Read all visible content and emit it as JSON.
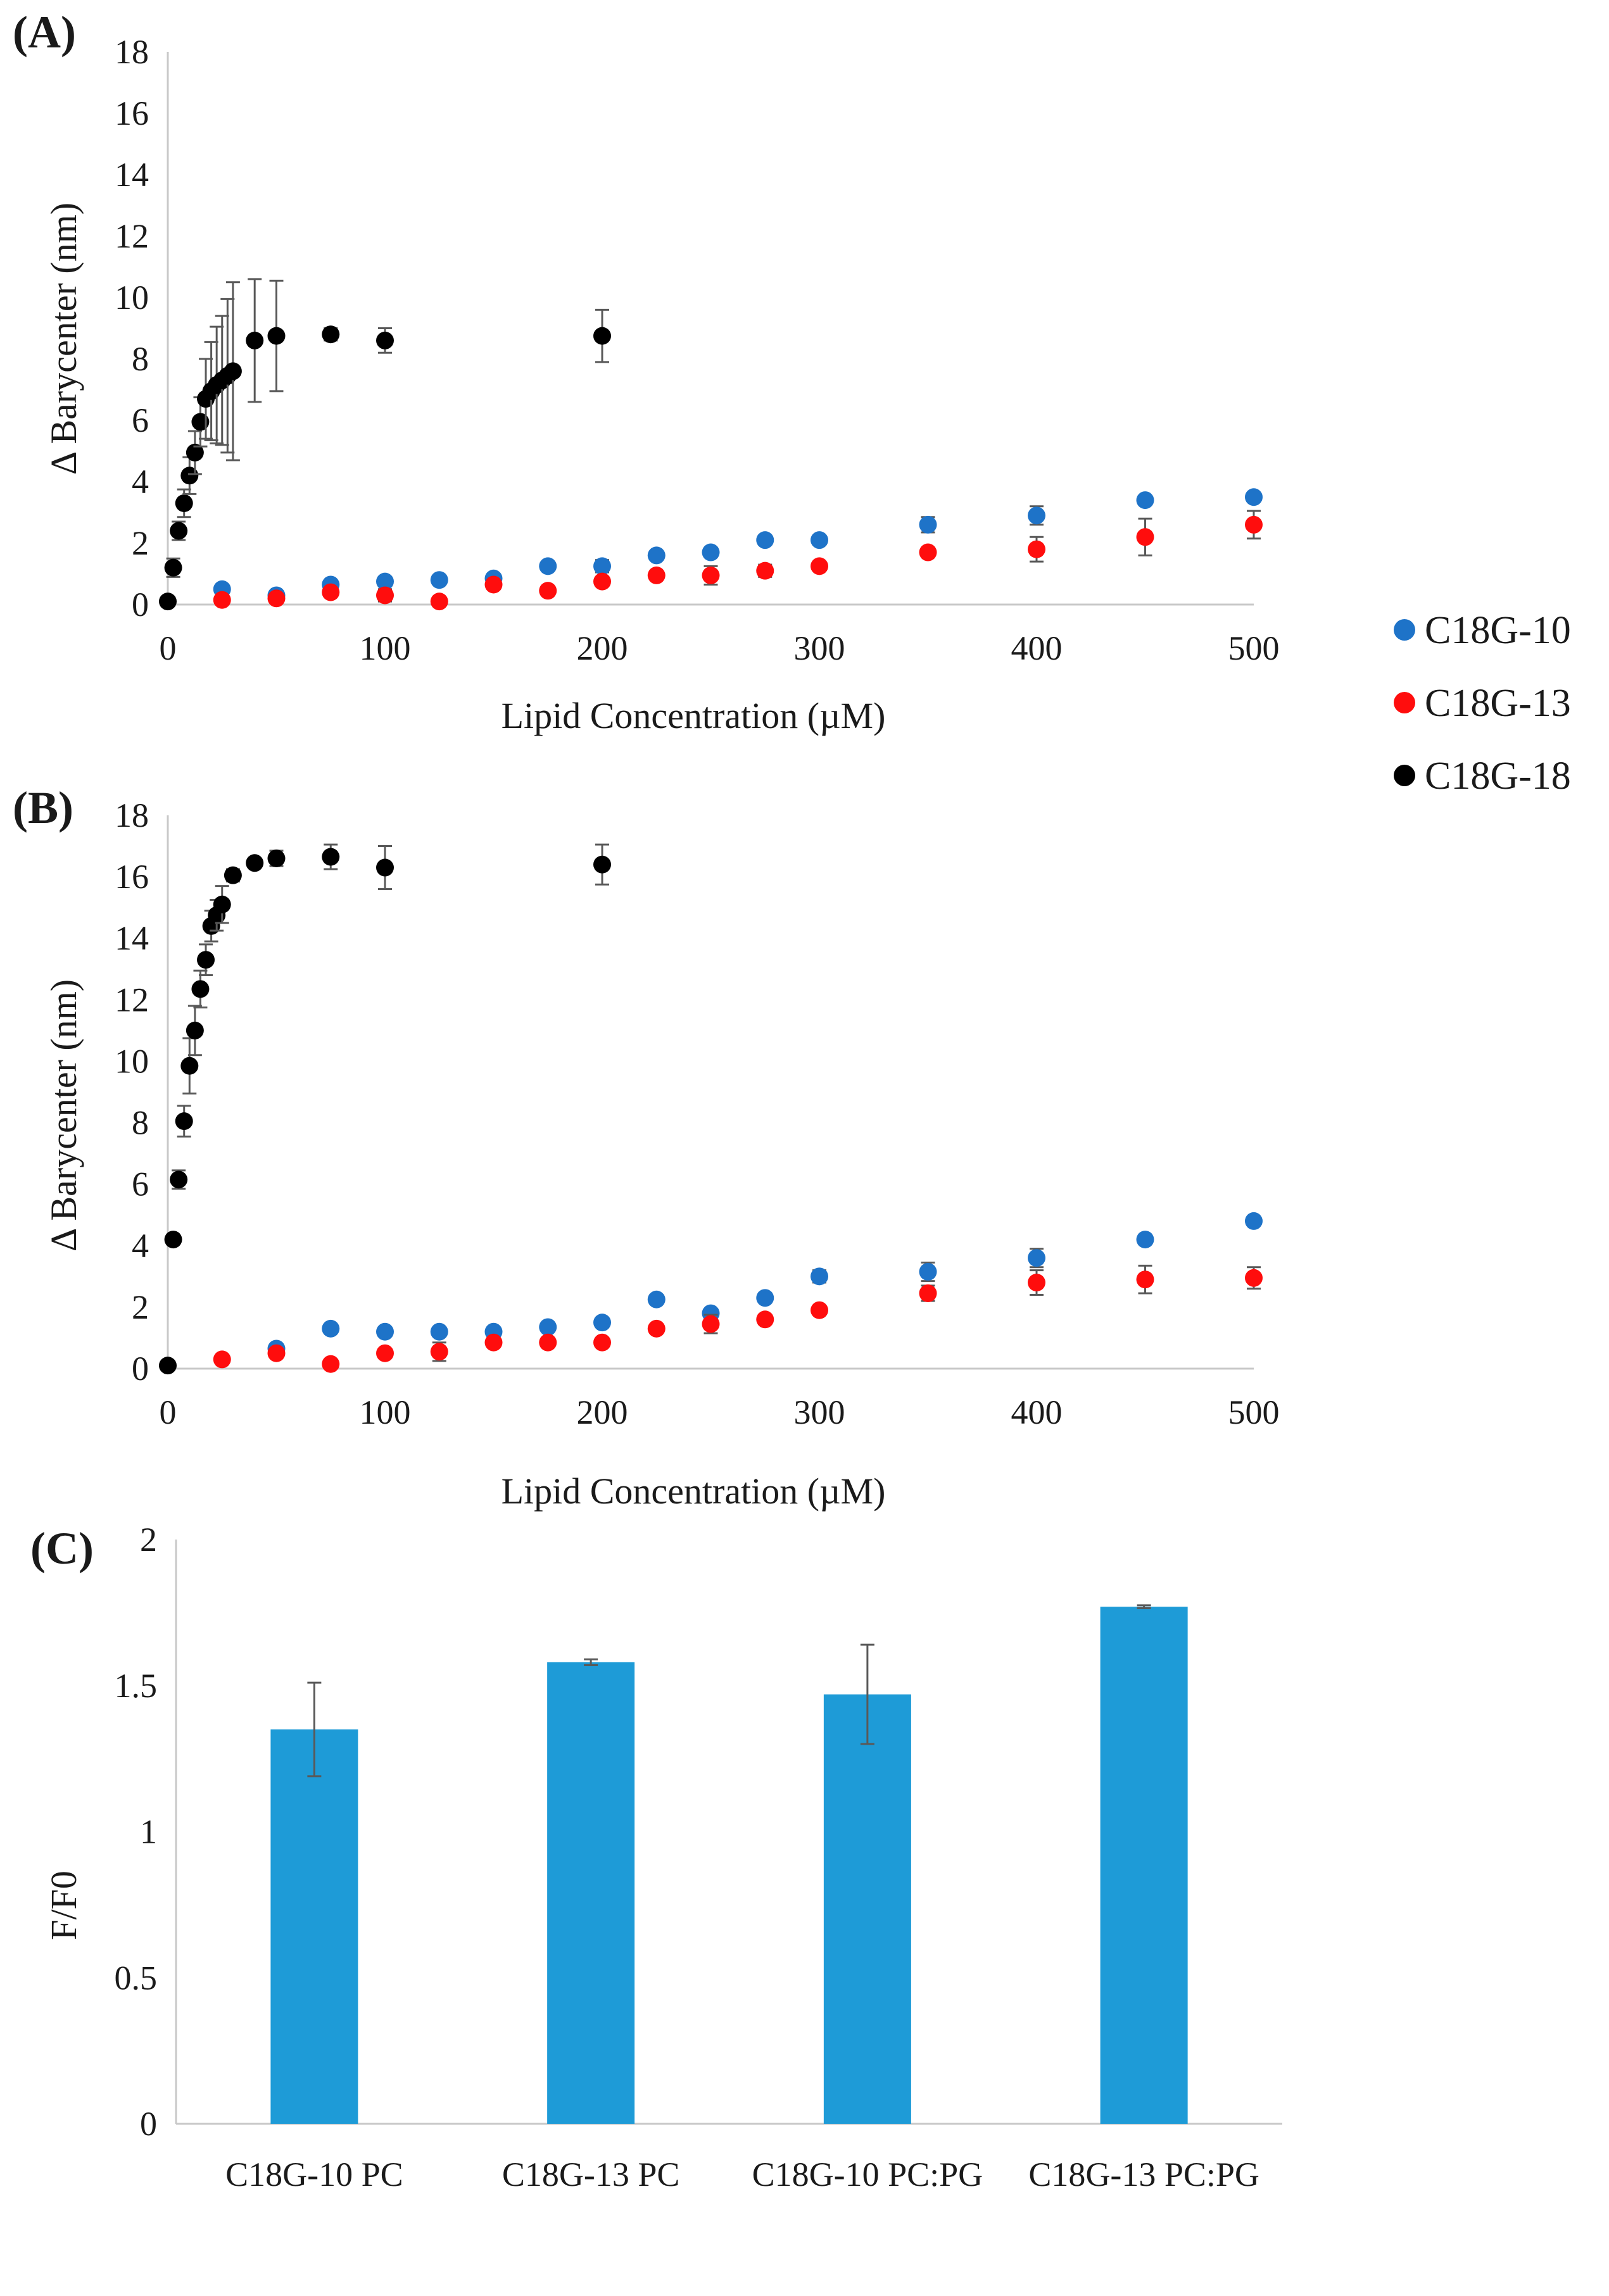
{
  "figure": {
    "panel_labels": [
      "(A)",
      "(B)",
      "(C)"
    ]
  },
  "legend": {
    "entries": [
      {
        "name": "C18G-10",
        "color": "#1e73c8"
      },
      {
        "name": "C18G-13",
        "color": "#ff0d0d"
      },
      {
        "name": "C18G-18",
        "color": "#000000"
      }
    ]
  },
  "chart_data": [
    {
      "panel": "(A)",
      "type": "scatter",
      "xlabel": "Lipid Concentration (µM)",
      "ylabel": "Δ Barycenter (nm)",
      "xlim": [
        0,
        500
      ],
      "ylim": [
        0,
        18
      ],
      "xticks": [
        0,
        100,
        200,
        300,
        400,
        500
      ],
      "yticks": [
        0,
        2,
        4,
        6,
        8,
        10,
        12,
        14,
        16,
        18
      ],
      "series": [
        {
          "name": "C18G-10",
          "color": "#1e73c8",
          "x": [
            25,
            50,
            75,
            100,
            125,
            150,
            175,
            200,
            225,
            250,
            275,
            300,
            350,
            400,
            450,
            500
          ],
          "y": [
            0.5,
            0.3,
            0.65,
            0.75,
            0.8,
            0.85,
            1.25,
            1.25,
            1.6,
            1.7,
            2.1,
            2.1,
            2.6,
            2.9,
            3.4,
            3.5
          ],
          "err": [
            0.05,
            0.05,
            0.05,
            0.1,
            0.05,
            0.05,
            0.1,
            0.2,
            0.1,
            0.15,
            0.15,
            0.15,
            0.25,
            0.3,
            0.1,
            0.1
          ]
        },
        {
          "name": "C18G-13",
          "color": "#ff0d0d",
          "x": [
            25,
            50,
            75,
            100,
            125,
            150,
            175,
            200,
            225,
            250,
            275,
            300,
            350,
            400,
            450,
            500
          ],
          "y": [
            0.15,
            0.2,
            0.4,
            0.3,
            0.1,
            0.65,
            0.45,
            0.75,
            0.95,
            0.95,
            1.1,
            1.25,
            1.7,
            1.8,
            2.2,
            2.6
          ],
          "err": [
            0.05,
            0.05,
            0.1,
            0.2,
            0.05,
            0.1,
            0.1,
            0.1,
            0.1,
            0.3,
            0.2,
            0.1,
            0.1,
            0.4,
            0.6,
            0.45
          ]
        },
        {
          "name": "C18G-18",
          "color": "#000000",
          "x": [
            0,
            2.5,
            5,
            7.5,
            10,
            12.5,
            15,
            17.5,
            20,
            22.5,
            25,
            27.5,
            30,
            40,
            50,
            75,
            100,
            200
          ],
          "y": [
            0.1,
            1.2,
            2.4,
            3.3,
            4.2,
            4.95,
            5.95,
            6.7,
            6.95,
            7.15,
            7.3,
            7.45,
            7.6,
            8.6,
            8.75,
            8.8,
            8.6,
            8.75
          ],
          "err": [
            0,
            0.3,
            0.3,
            0.45,
            0.6,
            0.7,
            0.8,
            1.3,
            1.6,
            1.9,
            2.1,
            2.5,
            2.9,
            2.0,
            1.8,
            0.2,
            0.4,
            0.85
          ]
        }
      ]
    },
    {
      "panel": "(B)",
      "type": "scatter",
      "xlabel": "Lipid Concentration (µM)",
      "ylabel": "Δ Barycenter (nm)",
      "xlim": [
        0,
        500
      ],
      "ylim": [
        0,
        18
      ],
      "xticks": [
        0,
        100,
        200,
        300,
        400,
        500
      ],
      "yticks": [
        0,
        2,
        4,
        6,
        8,
        10,
        12,
        14,
        16,
        18
      ],
      "series": [
        {
          "name": "C18G-10",
          "color": "#1e73c8",
          "x": [
            50,
            75,
            100,
            125,
            150,
            175,
            200,
            225,
            250,
            275,
            300,
            350,
            400,
            450,
            500
          ],
          "y": [
            0.65,
            1.3,
            1.2,
            1.2,
            1.2,
            1.35,
            1.5,
            2.25,
            1.8,
            2.3,
            3.0,
            3.15,
            3.6,
            4.2,
            4.8
          ],
          "err": [
            0.1,
            0.1,
            0.1,
            0.1,
            0.1,
            0.1,
            0.15,
            0.15,
            0.1,
            0.15,
            0.2,
            0.3,
            0.3,
            0.15,
            0.1
          ]
        },
        {
          "name": "C18G-13",
          "color": "#ff0d0d",
          "x": [
            25,
            50,
            75,
            100,
            125,
            150,
            175,
            200,
            225,
            250,
            275,
            300,
            350,
            400,
            450,
            500
          ],
          "y": [
            0.3,
            0.5,
            0.15,
            0.5,
            0.55,
            0.85,
            0.85,
            0.85,
            1.3,
            1.45,
            1.6,
            1.9,
            2.45,
            2.8,
            2.9,
            2.95
          ],
          "err": [
            0.05,
            0.1,
            0.05,
            0.1,
            0.3,
            0.1,
            0.1,
            0.1,
            0.1,
            0.3,
            0.15,
            0.1,
            0.25,
            0.4,
            0.45,
            0.35
          ]
        },
        {
          "name": "C18G-18",
          "color": "#000000",
          "x": [
            0,
            2.5,
            5,
            7.5,
            10,
            12.5,
            15,
            17.5,
            20,
            22.5,
            25,
            30,
            40,
            50,
            75,
            100,
            200
          ],
          "y": [
            0.1,
            4.2,
            6.15,
            8.05,
            9.85,
            11.0,
            12.35,
            13.3,
            14.4,
            14.75,
            15.1,
            16.05,
            16.45,
            16.6,
            16.65,
            16.3,
            16.4
          ],
          "err": [
            0,
            0.1,
            0.3,
            0.5,
            0.9,
            0.8,
            0.6,
            0.5,
            0.5,
            0.5,
            0.6,
            0.2,
            0.1,
            0.25,
            0.4,
            0.7,
            0.65
          ]
        }
      ]
    },
    {
      "panel": "(C)",
      "type": "bar",
      "xlabel": "",
      "ylabel": "F/F0",
      "ylim": [
        0,
        2
      ],
      "yticks": [
        0,
        0.5,
        1,
        1.5,
        2
      ],
      "ytick_labels": [
        "0",
        "0.5",
        "1",
        "1.5",
        "2"
      ],
      "categories": [
        "C18G-10 PC",
        "C18G-13 PC",
        "C18G-10 PC:PG",
        "C18G-13 PC:PG"
      ],
      "values": [
        1.35,
        1.58,
        1.47,
        1.77
      ],
      "err": [
        0.16,
        0.01,
        0.17,
        0.005
      ],
      "color": "#1e9bd7"
    }
  ]
}
